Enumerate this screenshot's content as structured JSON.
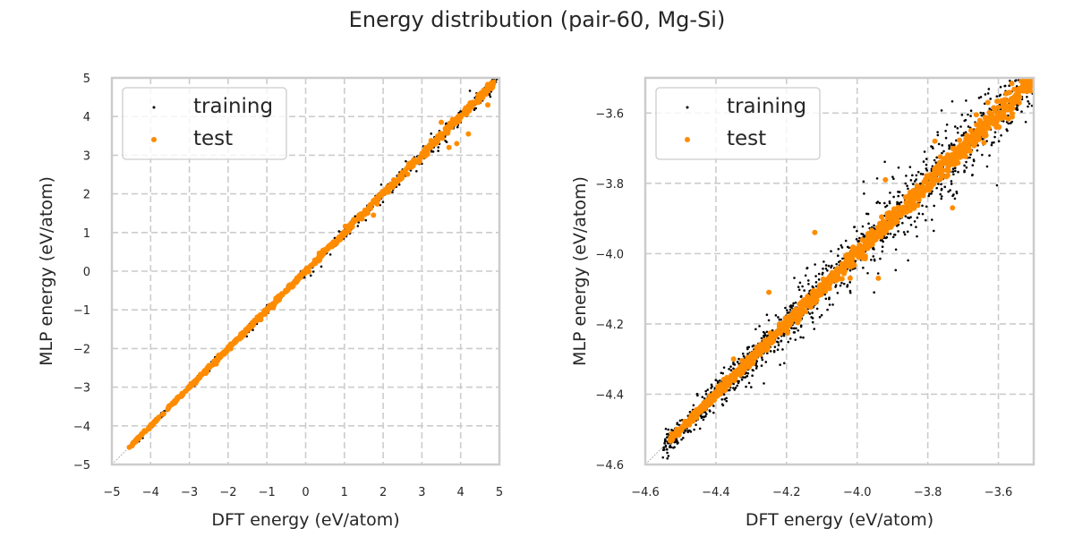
{
  "figure": {
    "title": "Energy distribution (pair-60, Mg-Si)"
  },
  "colors": {
    "training": "#000000",
    "test": "#ff8c00",
    "grid": "#cccccc",
    "frame": "#cccccc",
    "diagonal": "#a0a0a0"
  },
  "chart_data": [
    {
      "type": "scatter",
      "title": "",
      "xlabel": "DFT energy (eV/atom)",
      "ylabel": "MLP energy (eV/atom)",
      "xlim": [
        -5,
        5
      ],
      "ylim": [
        -5,
        5
      ],
      "xticks": [
        "−5",
        "−4",
        "−3",
        "−2",
        "−1",
        "0",
        "1",
        "2",
        "3",
        "4",
        "5"
      ],
      "yticks": [
        "5",
        "4",
        "3",
        "2",
        "1",
        "0",
        "−1",
        "−2",
        "−3",
        "−4",
        "−5"
      ],
      "xtick_values": [
        -5,
        -4,
        -3,
        -2,
        -1,
        0,
        1,
        2,
        3,
        4,
        5
      ],
      "ytick_values": [
        5,
        4,
        3,
        2,
        1,
        0,
        -1,
        -2,
        -3,
        -4,
        -5
      ],
      "grid": true,
      "reference_line": "y = x",
      "legend": {
        "placement": "top-left",
        "entries": [
          "training",
          "test"
        ]
      },
      "series": [
        {
          "name": "training",
          "marker": "small dot",
          "distribution": {
            "x_range": [
              -4.55,
              4.95
            ],
            "along_line": "y = x",
            "spread_low": 0.03,
            "spread_high": 0.12,
            "count": 900
          }
        },
        {
          "name": "test",
          "marker": "circle",
          "distribution": {
            "x_range": [
              -4.55,
              4.85
            ],
            "along_line": "y = x",
            "spread_low": 0.02,
            "spread_high": 0.1,
            "count": 700
          },
          "outliers": [
            {
              "x": 3.5,
              "y": 3.85
            },
            {
              "x": 3.9,
              "y": 3.3
            },
            {
              "x": 3.7,
              "y": 3.2
            },
            {
              "x": 4.7,
              "y": 4.3
            },
            {
              "x": 1.75,
              "y": 1.45
            },
            {
              "x": 4.2,
              "y": 3.55
            }
          ]
        }
      ]
    },
    {
      "type": "scatter",
      "title": "",
      "xlabel": "DFT energy (eV/atom)",
      "ylabel": "MLP energy (eV/atom)",
      "xlim": [
        -4.6,
        -3.5
      ],
      "ylim": [
        -4.6,
        -3.5
      ],
      "xticks": [
        "−4.6",
        "−4.4",
        "−4.2",
        "−4.0",
        "−3.8",
        "−3.6"
      ],
      "yticks": [
        "−3.6",
        "−3.8",
        "−4.0",
        "−4.2",
        "−4.4",
        "−4.6"
      ],
      "xtick_values": [
        -4.6,
        -4.4,
        -4.2,
        -4.0,
        -3.8,
        -3.6
      ],
      "ytick_values": [
        -3.6,
        -3.8,
        -4.0,
        -4.2,
        -4.4,
        -4.6
      ],
      "grid": true,
      "reference_line": "y = x",
      "legend": {
        "placement": "top-left",
        "entries": [
          "training",
          "test"
        ]
      },
      "series": [
        {
          "name": "training",
          "marker": "small dot",
          "distribution": {
            "x_range": [
              -4.55,
              -3.5
            ],
            "along_line": "y = x",
            "spread_low": 0.02,
            "spread_high": 0.07,
            "count": 1400
          }
        },
        {
          "name": "test",
          "marker": "circle",
          "distribution": {
            "x_range": [
              -4.53,
              -3.5
            ],
            "along_line": "y = x",
            "spread_low": 0.008,
            "spread_high": 0.03,
            "count": 1100
          },
          "outliers": [
            {
              "x": -4.25,
              "y": -4.11
            },
            {
              "x": -4.12,
              "y": -3.94
            },
            {
              "x": -3.94,
              "y": -4.07
            },
            {
              "x": -3.92,
              "y": -3.79
            },
            {
              "x": -3.73,
              "y": -3.87
            },
            {
              "x": -3.78,
              "y": -3.68
            },
            {
              "x": -4.35,
              "y": -4.3
            },
            {
              "x": -4.02,
              "y": -4.07
            },
            {
              "x": -3.63,
              "y": -3.57
            }
          ]
        }
      ]
    }
  ]
}
